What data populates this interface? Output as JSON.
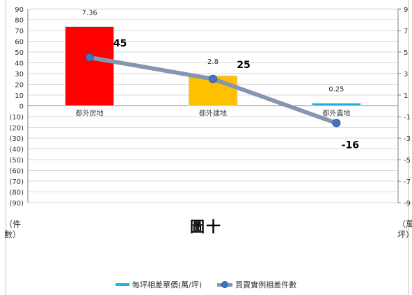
{
  "caption": "圖十",
  "left_axis_label": "（件數）",
  "right_axis_label": "（萬/坪）",
  "chart_data": {
    "type": "bar+line",
    "categories": [
      "都外房地",
      "都外建地",
      "都外農地"
    ],
    "bar_series": {
      "name": "每坪相差單價(萬/坪)",
      "values": [
        7.36,
        2.8,
        0.25
      ],
      "colors": [
        "#ff0000",
        "#ffc000",
        "#1cb0e8"
      ],
      "data_labels": [
        "7.36",
        "2.8",
        "0.25"
      ],
      "axis": "right"
    },
    "line_series": {
      "name": "買賣實例相差件數",
      "values": [
        45,
        25,
        -16
      ],
      "data_labels": [
        "45",
        "25",
        "-16"
      ],
      "line_color": "#8497b0",
      "marker_color": "#4472c4",
      "axis": "left"
    },
    "left_axis": {
      "min": -90,
      "max": 90,
      "ticks": [
        "90",
        "80",
        "70",
        "60",
        "50",
        "40",
        "30",
        "20",
        "10",
        "0",
        "(10)",
        "(20)",
        "(30)",
        "(40)",
        "(50)",
        "(60)",
        "(70)",
        "(80)",
        "(90)"
      ]
    },
    "right_axis": {
      "min": -9,
      "max": 9,
      "ticks": [
        "9",
        "7",
        "5",
        "3",
        "1",
        "-1",
        "-3",
        "-5",
        "-7",
        "-9"
      ]
    },
    "grid": true,
    "legend_position": "bottom"
  }
}
